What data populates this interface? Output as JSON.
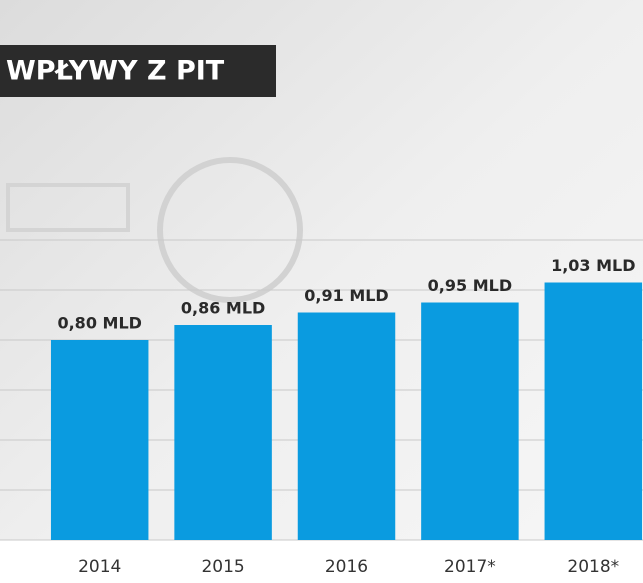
{
  "chart_data": {
    "type": "bar",
    "title": "WPŁYWY Z PIT",
    "categories": [
      "2014",
      "2015",
      "2016",
      "2017*",
      "2018*"
    ],
    "values": [
      0.8,
      0.86,
      0.91,
      0.95,
      1.03
    ],
    "value_labels": [
      "0,80 MLD",
      "0,86 MLD",
      "0,91 MLD",
      "0,95 MLD",
      "1,03 MLD"
    ],
    "color": "#0a9be0",
    "ylim": [
      0,
      1.2
    ],
    "yticks": [
      0,
      0.2,
      0.4,
      0.6,
      0.8,
      1,
      1.2
    ],
    "grid": true
  }
}
